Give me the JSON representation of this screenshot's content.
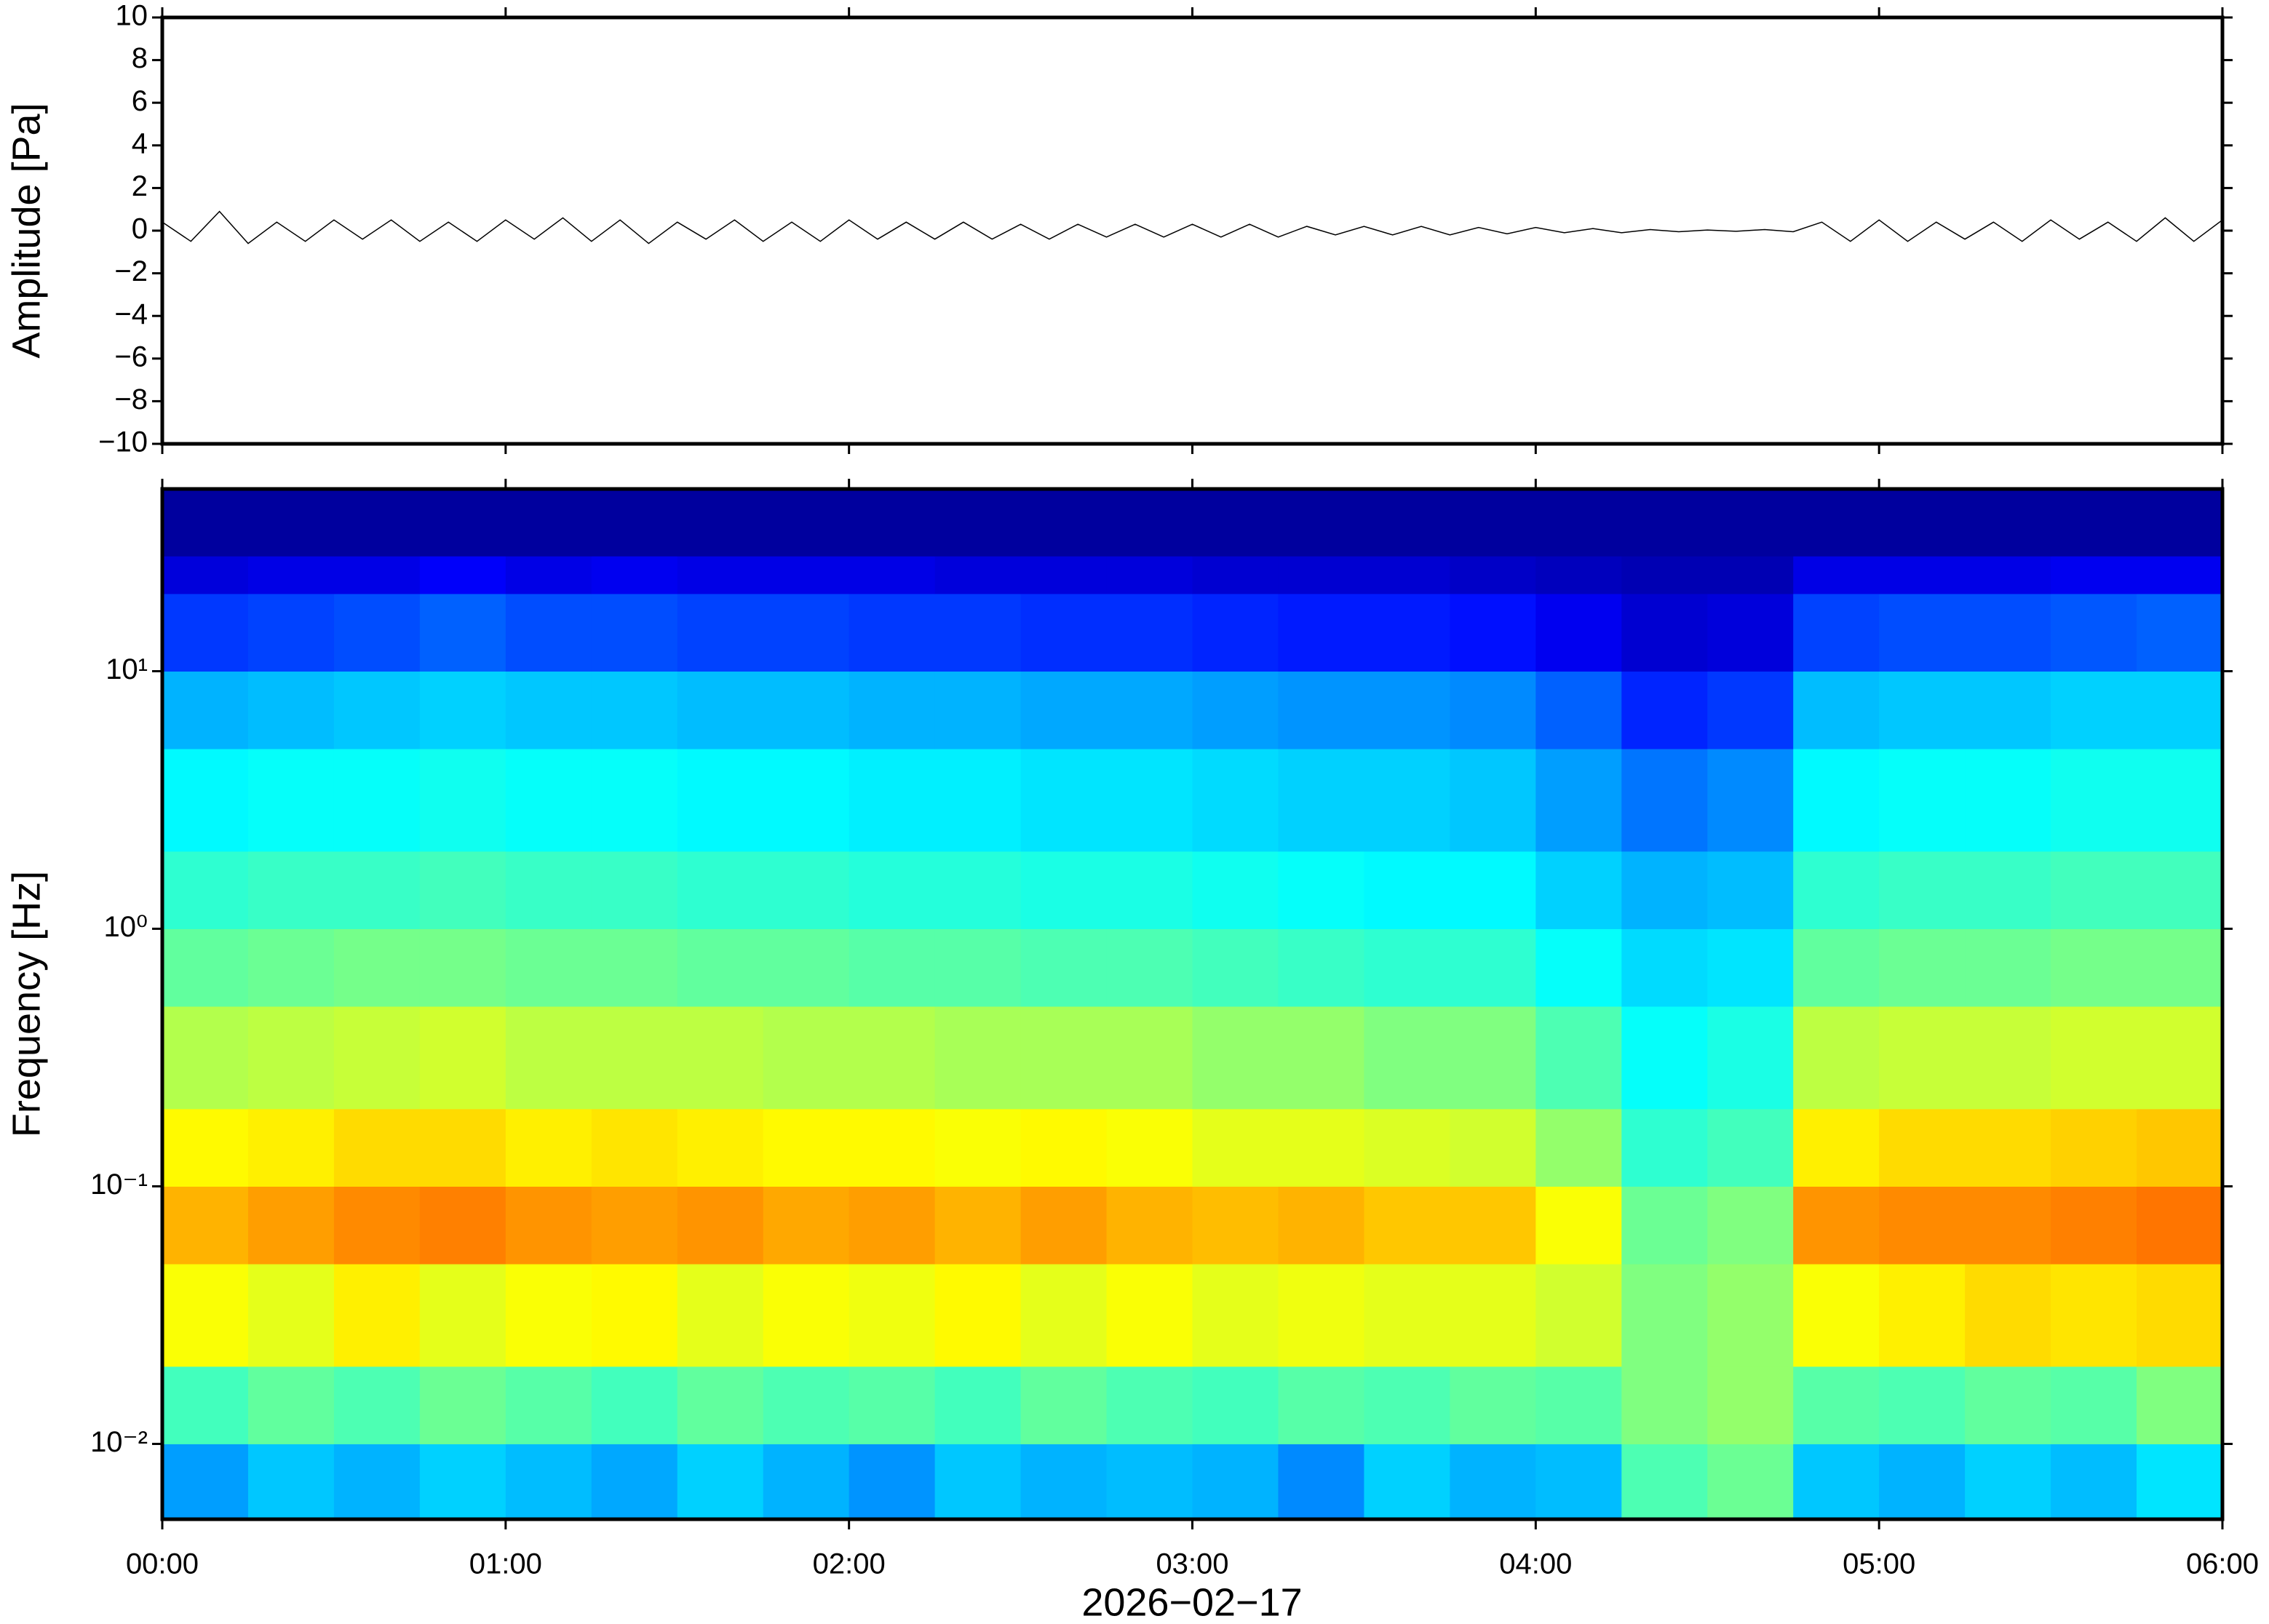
{
  "chart_data": [
    {
      "type": "line",
      "ylabel": "Amplitude [Pa]",
      "color": "#000000",
      "ylim": [
        -10,
        10
      ],
      "yticks": [
        {
          "value": -10,
          "label": "−10"
        },
        {
          "value": -8,
          "label": "−8"
        },
        {
          "value": -6,
          "label": "−6"
        },
        {
          "value": -4,
          "label": "−4"
        },
        {
          "value": -2,
          "label": "−2"
        },
        0,
        2,
        4,
        6,
        8,
        10
      ],
      "x": [
        0,
        5,
        10,
        15,
        20,
        25,
        30,
        35,
        40,
        45,
        50,
        55,
        60,
        65,
        70,
        75,
        80,
        85,
        90,
        95,
        100,
        105,
        110,
        115,
        120,
        125,
        130,
        135,
        140,
        145,
        150,
        155,
        160,
        165,
        170,
        175,
        180,
        185,
        190,
        195,
        200,
        205,
        210,
        215,
        220,
        225,
        230,
        235,
        240,
        245,
        250,
        255,
        260,
        265,
        270,
        275,
        280,
        285,
        290,
        295,
        300,
        305,
        310,
        315,
        320,
        325,
        330,
        335,
        340,
        345,
        350,
        355,
        360
      ],
      "values": [
        0.4,
        -0.5,
        0.9,
        -0.6,
        0.4,
        -0.5,
        0.5,
        -0.4,
        0.5,
        -0.5,
        0.4,
        -0.5,
        0.5,
        -0.4,
        0.6,
        -0.5,
        0.5,
        -0.6,
        0.4,
        -0.4,
        0.5,
        -0.5,
        0.4,
        -0.5,
        0.5,
        -0.4,
        0.4,
        -0.4,
        0.4,
        -0.4,
        0.3,
        -0.4,
        0.3,
        -0.3,
        0.3,
        -0.3,
        0.3,
        -0.3,
        0.3,
        -0.3,
        0.2,
        -0.2,
        0.2,
        -0.2,
        0.2,
        -0.2,
        0.15,
        -0.15,
        0.15,
        -0.1,
        0.1,
        -0.1,
        0.05,
        -0.05,
        0.03,
        -0.03,
        0.05,
        -0.05,
        0.4,
        -0.5,
        0.5,
        -0.5,
        0.4,
        -0.4,
        0.4,
        -0.5,
        0.5,
        -0.4,
        0.4,
        -0.5,
        0.6,
        -0.5,
        0.5
      ]
    },
    {
      "type": "heatmap",
      "ylabel": "Frequency [Hz]",
      "xlabel": "2026−02−17",
      "log_y": true,
      "colormap": "jet",
      "zlim": [
        0,
        1
      ],
      "xlim": [
        0,
        360
      ],
      "xticks": [
        {
          "value": 0,
          "label": "00:00"
        },
        {
          "value": 60,
          "label": "01:00"
        },
        {
          "value": 120,
          "label": "02:00"
        },
        {
          "value": 180,
          "label": "03:00"
        },
        {
          "value": 240,
          "label": "04:00"
        },
        {
          "value": 300,
          "label": "05:00"
        },
        {
          "value": 360,
          "label": "06:00"
        }
      ],
      "ylim": [
        0.0051,
        51
      ],
      "yticks": [
        {
          "value": 0.01,
          "label": "10⁻²"
        },
        {
          "value": 0.1,
          "label": "10⁻¹"
        },
        {
          "value": 1,
          "label": "10⁰"
        },
        {
          "value": 10,
          "label": "10¹"
        }
      ],
      "xbins": [
        0,
        15,
        30,
        45,
        60,
        75,
        90,
        105,
        120,
        135,
        150,
        165,
        180,
        195,
        210,
        225,
        240,
        255,
        270,
        285,
        300,
        315,
        330,
        345,
        360
      ],
      "ybins": [
        0.0051,
        0.01,
        0.02,
        0.05,
        0.1,
        0.2,
        0.5,
        1,
        2,
        5,
        10,
        20,
        28,
        51
      ],
      "values": [
        [
          0.28,
          0.32,
          0.3,
          0.33,
          0.31,
          0.29,
          0.33,
          0.3,
          0.27,
          0.32,
          0.3,
          0.31,
          0.3,
          0.26,
          0.33,
          0.3,
          0.31,
          0.45,
          0.48,
          0.32,
          0.3,
          0.33,
          0.31,
          0.35
        ],
        [
          0.44,
          0.47,
          0.45,
          0.48,
          0.46,
          0.44,
          0.47,
          0.45,
          0.46,
          0.44,
          0.47,
          0.45,
          0.44,
          0.46,
          0.45,
          0.47,
          0.46,
          0.5,
          0.52,
          0.46,
          0.45,
          0.47,
          0.46,
          0.5
        ],
        [
          0.62,
          0.6,
          0.64,
          0.6,
          0.62,
          0.63,
          0.6,
          0.62,
          0.61,
          0.63,
          0.6,
          0.62,
          0.6,
          0.61,
          0.6,
          0.6,
          0.58,
          0.5,
          0.52,
          0.62,
          0.64,
          0.66,
          0.65,
          0.66
        ],
        [
          0.7,
          0.72,
          0.74,
          0.75,
          0.73,
          0.72,
          0.73,
          0.71,
          0.72,
          0.7,
          0.72,
          0.7,
          0.69,
          0.7,
          0.68,
          0.68,
          0.62,
          0.48,
          0.5,
          0.73,
          0.74,
          0.74,
          0.75,
          0.76
        ],
        [
          0.63,
          0.64,
          0.66,
          0.66,
          0.64,
          0.65,
          0.64,
          0.63,
          0.63,
          0.62,
          0.63,
          0.62,
          0.6,
          0.6,
          0.59,
          0.58,
          0.52,
          0.42,
          0.44,
          0.64,
          0.66,
          0.66,
          0.67,
          0.68
        ],
        [
          0.55,
          0.56,
          0.57,
          0.58,
          0.56,
          0.56,
          0.56,
          0.55,
          0.55,
          0.54,
          0.54,
          0.54,
          0.52,
          0.52,
          0.5,
          0.5,
          0.45,
          0.38,
          0.4,
          0.56,
          0.57,
          0.57,
          0.58,
          0.58
        ],
        [
          0.47,
          0.48,
          0.49,
          0.49,
          0.48,
          0.48,
          0.47,
          0.47,
          0.46,
          0.46,
          0.45,
          0.45,
          0.44,
          0.43,
          0.42,
          0.42,
          0.38,
          0.34,
          0.35,
          0.47,
          0.48,
          0.48,
          0.49,
          0.49
        ],
        [
          0.42,
          0.43,
          0.43,
          0.44,
          0.43,
          0.43,
          0.42,
          0.42,
          0.41,
          0.41,
          0.4,
          0.4,
          0.39,
          0.38,
          0.37,
          0.37,
          0.33,
          0.3,
          0.31,
          0.42,
          0.43,
          0.43,
          0.44,
          0.44
        ],
        [
          0.37,
          0.38,
          0.38,
          0.39,
          0.38,
          0.38,
          0.37,
          0.37,
          0.36,
          0.36,
          0.35,
          0.35,
          0.34,
          0.33,
          0.33,
          0.32,
          0.28,
          0.24,
          0.26,
          0.37,
          0.38,
          0.38,
          0.39,
          0.39
        ],
        [
          0.3,
          0.31,
          0.32,
          0.33,
          0.32,
          0.32,
          0.31,
          0.31,
          0.3,
          0.3,
          0.29,
          0.29,
          0.28,
          0.27,
          0.27,
          0.26,
          0.22,
          0.16,
          0.18,
          0.31,
          0.32,
          0.32,
          0.33,
          0.33
        ],
        [
          0.18,
          0.19,
          0.2,
          0.22,
          0.2,
          0.2,
          0.19,
          0.19,
          0.18,
          0.18,
          0.17,
          0.17,
          0.16,
          0.15,
          0.15,
          0.14,
          0.11,
          0.08,
          0.09,
          0.19,
          0.2,
          0.2,
          0.21,
          0.22
        ],
        [
          0.09,
          0.1,
          0.1,
          0.12,
          0.1,
          0.11,
          0.1,
          0.1,
          0.1,
          0.09,
          0.09,
          0.09,
          0.08,
          0.08,
          0.08,
          0.07,
          0.06,
          0.05,
          0.05,
          0.1,
          0.1,
          0.1,
          0.11,
          0.11
        ],
        [
          0.03,
          0.03,
          0.03,
          0.03,
          0.03,
          0.03,
          0.03,
          0.03,
          0.03,
          0.03,
          0.03,
          0.03,
          0.03,
          0.03,
          0.03,
          0.03,
          0.03,
          0.03,
          0.03,
          0.03,
          0.03,
          0.03,
          0.03,
          0.03
        ]
      ]
    }
  ]
}
